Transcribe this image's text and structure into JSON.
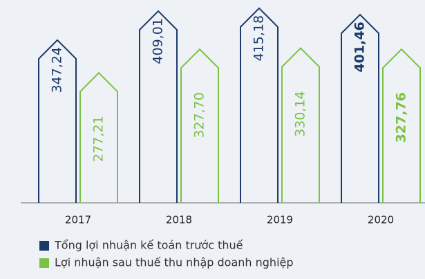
{
  "chart_data": {
    "type": "bar",
    "categories": [
      "2017",
      "2018",
      "2019",
      "2020"
    ],
    "series": [
      {
        "name": "Tổng lợi nhuận kế toán trước thuế",
        "color": "#1b3a6b",
        "values": [
          347.24,
          409.01,
          415.18,
          401.46
        ],
        "value_labels": [
          "347,24",
          "409,01",
          "415,18",
          "401,46"
        ]
      },
      {
        "name": "Lợi nhuận sau thuế thu nhập doanh nghiệp",
        "color": "#7cc242",
        "values": [
          277.21,
          327.7,
          330.14,
          327.76
        ],
        "value_labels": [
          "277,21",
          "327,70",
          "330,14",
          "327,76"
        ]
      }
    ]
  }
}
